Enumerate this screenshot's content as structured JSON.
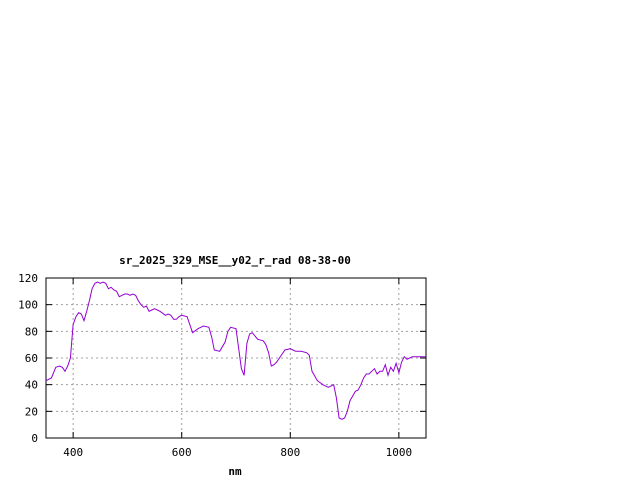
{
  "chart_data": {
    "type": "line",
    "title": "sr_2025_329_MSE__y02_r_rad 08-38-00",
    "xlabel": "nm",
    "ylabel": "",
    "xlim": [
      350,
      1050
    ],
    "ylim": [
      0,
      120
    ],
    "xticks": [
      400,
      600,
      800,
      1000
    ],
    "yticks": [
      0,
      20,
      40,
      60,
      80,
      100,
      120
    ],
    "grid": true,
    "line_color": "#9400d3",
    "series": [
      {
        "x": [
          350,
          360,
          368,
          375,
          380,
          385,
          390,
          395,
          400,
          405,
          410,
          415,
          420,
          425,
          430,
          435,
          440,
          445,
          450,
          455,
          460,
          465,
          470,
          475,
          480,
          485,
          490,
          495,
          500,
          505,
          510,
          515,
          520,
          525,
          530,
          535,
          540,
          545,
          550,
          555,
          560,
          570,
          575,
          580,
          585,
          590,
          595,
          600,
          610,
          620,
          630,
          640,
          650,
          655,
          660,
          670,
          680,
          685,
          690,
          700,
          710,
          715,
          720,
          725,
          730,
          740,
          750,
          755,
          760,
          765,
          770,
          775,
          780,
          790,
          800,
          805,
          810,
          820,
          830,
          835,
          840,
          850,
          860,
          870,
          880,
          885,
          890,
          895,
          900,
          905,
          910,
          920,
          925,
          930,
          935,
          940,
          945,
          950,
          955,
          960,
          965,
          970,
          975,
          980,
          985,
          990,
          995,
          1000,
          1005,
          1010,
          1015,
          1020,
          1025,
          1030,
          1035,
          1040,
          1045,
          1050
        ],
        "y": [
          43,
          45,
          53,
          54,
          53,
          50,
          54,
          60,
          85,
          91,
          94,
          93,
          88,
          95,
          103,
          112,
          116,
          117,
          116,
          117,
          116,
          112,
          113,
          111,
          110,
          106,
          107,
          108,
          108,
          107,
          108,
          107,
          103,
          100,
          98,
          99,
          95,
          96,
          97,
          96,
          95,
          92,
          93,
          92,
          89,
          89,
          91,
          92,
          91,
          79,
          82,
          84,
          83,
          76,
          66,
          65,
          72,
          80,
          83,
          82,
          52,
          47,
          71,
          78,
          79,
          74,
          73,
          70,
          64,
          54,
          55,
          57,
          60,
          66,
          67,
          66,
          65,
          65,
          64,
          62,
          50,
          43,
          40,
          38,
          40,
          30,
          15,
          14,
          15,
          20,
          28,
          35,
          36,
          40,
          45,
          48,
          48,
          50,
          52,
          48,
          50,
          50,
          55,
          47,
          53,
          50,
          56,
          49,
          57,
          61,
          59,
          60,
          61,
          61,
          61,
          61,
          61,
          61
        ]
      }
    ]
  }
}
